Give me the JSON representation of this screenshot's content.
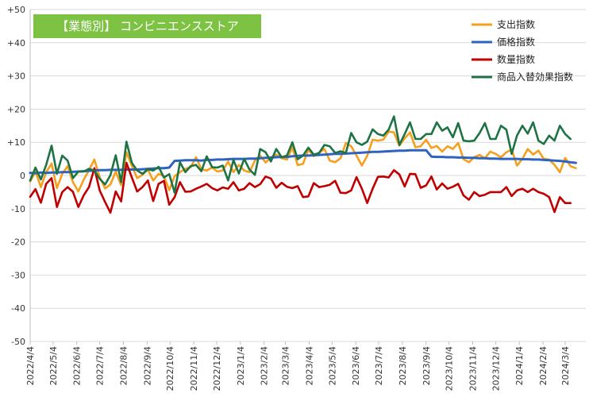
{
  "chart_data": {
    "type": "line",
    "title": "【業態別】 コンビニエンスストア",
    "title_bg": "#7dc242",
    "ylim": [
      -50,
      50
    ],
    "yticks": [
      -50,
      -40,
      -30,
      -20,
      -10,
      0,
      10,
      20,
      30,
      40,
      50
    ],
    "ytick_labels": [
      "-50",
      "-40",
      "-30",
      "-20",
      "-10",
      "0",
      "+10",
      "+20",
      "+30",
      "+40",
      "+50"
    ],
    "x_start": "2022-04-04",
    "x_end": "2024-03-31",
    "xtick_labels": [
      "2022/4/4",
      "2022/5/4",
      "2022/6/4",
      "2022/7/4",
      "2022/8/4",
      "2022/9/4",
      "2022/10/4",
      "2022/11/4",
      "2022/12/4",
      "2023/1/4",
      "2023/2/4",
      "2023/3/4",
      "2023/4/4",
      "2023/5/4",
      "2023/6/4",
      "2023/7/4",
      "2023/8/4",
      "2023/9/4",
      "2023/10/4",
      "2023/11/4",
      "2023/12/4",
      "2024/1/4",
      "2024/2/4",
      "2024/3/4"
    ],
    "grid": true,
    "legend_position": "top-right",
    "series": [
      {
        "name": "支出指数",
        "color": "#f5a01d",
        "values": [
          -1.8,
          1.2,
          -3.5,
          1.0,
          3.6,
          -3.8,
          0.5,
          2.8,
          -2.0,
          -4.8,
          -1.3,
          1.6,
          4.8,
          -0.5,
          -3.9,
          -2.7,
          1.2,
          -2.9,
          7.0,
          2.9,
          -0.8,
          0.2,
          1.8,
          -1.5,
          0.5,
          -0.2,
          -4.4,
          -0.2,
          1.0,
          2.0,
          2.5,
          5.5,
          1.9,
          1.5,
          2.4,
          1.2,
          1.5,
          4.2,
          1.0,
          3.2,
          1.5,
          1.0,
          4.5,
          6.0,
          3.9,
          5.5,
          6.3,
          5.2,
          4.8,
          8.5,
          3.1,
          3.5,
          7.8,
          5.8,
          6.8,
          8.0,
          4.5,
          4.0,
          5.2,
          9.8,
          8.8,
          6.0,
          3.0,
          5.9,
          10.8,
          10.5,
          10.8,
          13.2,
          13.0,
          9.0,
          11.2,
          13.0,
          8.5,
          8.8,
          10.8,
          8.3,
          8.9,
          7.2,
          8.8,
          8.0,
          9.8,
          4.9,
          4.0,
          5.5,
          6.2,
          5.2,
          7.2,
          6.5,
          5.5,
          7.0,
          7.8,
          3.0,
          5.0,
          8.0,
          6.3,
          7.5,
          5.0,
          4.8,
          3.2,
          1.0,
          5.3,
          2.8,
          2.2
        ]
      },
      {
        "name": "価格指数",
        "color": "#2f63c2",
        "values": [
          0.8,
          0.7,
          0.9,
          0.8,
          0.9,
          0.9,
          1.0,
          1.0,
          1.1,
          1.2,
          1.3,
          1.4,
          1.5,
          1.6,
          1.6,
          1.7,
          1.7,
          1.7,
          1.8,
          1.8,
          1.8,
          1.9,
          2.0,
          2.1,
          2.2,
          2.2,
          2.4,
          4.4,
          4.5,
          4.6,
          4.6,
          4.6,
          4.5,
          4.7,
          4.7,
          4.8,
          4.8,
          4.9,
          5.0,
          5.0,
          5.0,
          5.1,
          5.1,
          5.2,
          5.3,
          5.4,
          5.5,
          5.6,
          5.6,
          5.8,
          5.9,
          6.0,
          6.0,
          6.1,
          6.2,
          6.3,
          6.4,
          6.5,
          6.5,
          6.6,
          6.7,
          6.8,
          6.9,
          7.0,
          7.1,
          7.1,
          7.2,
          7.3,
          7.4,
          7.5,
          7.5,
          7.6,
          7.6,
          7.6,
          7.6,
          5.7,
          5.6,
          5.6,
          5.5,
          5.5,
          5.4,
          5.4,
          5.3,
          5.3,
          5.2,
          5.2,
          5.1,
          5.1,
          5.0,
          5.0,
          5.0,
          5.0,
          4.9,
          4.9,
          4.8,
          4.8,
          4.7,
          4.6,
          4.5,
          4.4,
          4.2,
          4.0,
          3.8
        ]
      },
      {
        "name": "数量指数",
        "color": "#c00000",
        "values": [
          -6.4,
          -4.1,
          -8.2,
          -2.5,
          -0.8,
          -9.5,
          -5.0,
          -3.5,
          -4.9,
          -9.5,
          -6.0,
          -3.5,
          2.2,
          -4.5,
          -8.0,
          -11.2,
          -4.8,
          -7.8,
          3.8,
          -0.6,
          -4.8,
          -3.5,
          -1.5,
          -7.7,
          -2.5,
          -1.6,
          -8.8,
          -6.5,
          -2.0,
          -4.9,
          -4.8,
          -4.0,
          -3.3,
          -2.5,
          -3.8,
          -4.5,
          -3.6,
          -4.0,
          -2.0,
          -4.5,
          -4.0,
          -2.3,
          -3.5,
          -2.6,
          -0.3,
          -0.9,
          -3.7,
          -2.2,
          -3.4,
          -3.8,
          -3.2,
          -6.5,
          -6.3,
          -2.3,
          -3.5,
          -3.2,
          -2.8,
          -1.6,
          -5.2,
          -5.3,
          -4.5,
          -0.5,
          -4.0,
          -8.3,
          -4.0,
          -0.4,
          -0.3,
          -0.6,
          1.6,
          0.3,
          -3.3,
          0.5,
          0.4,
          -3.7,
          -3.0,
          -0.3,
          -4.2,
          -2.4,
          -4.0,
          -3.4,
          -2.5,
          -6.0,
          -7.3,
          -5.0,
          -6.2,
          -5.8,
          -5.0,
          -5.0,
          -5.0,
          -3.5,
          -6.2,
          -4.5,
          -4.0,
          -5.0,
          -4.0,
          -5.0,
          -5.5,
          -6.5,
          -11.0,
          -6.5,
          -8.3,
          -8.3
        ]
      },
      {
        "name": "商品入替効果指数",
        "color": "#1e7345",
        "values": [
          -1.5,
          2.4,
          -1.2,
          3.2,
          9.0,
          0.5,
          6.0,
          4.5,
          -0.8,
          1.2,
          1.2,
          2.0,
          1.5,
          -1.0,
          -2.7,
          0.1,
          6.1,
          -2.0,
          10.2,
          3.8,
          1.5,
          0.5,
          1.9,
          1.5,
          2.6,
          -0.6,
          0.4,
          -5.2,
          4.0,
          1.0,
          2.8,
          3.2,
          1.3,
          5.8,
          2.5,
          2.4,
          3.0,
          -1.5,
          4.7,
          0.6,
          5.0,
          1.8,
          0.2,
          8.0,
          7.0,
          4.2,
          8.0,
          5.5,
          6.0,
          10.0,
          4.9,
          6.0,
          8.4,
          6.3,
          6.8,
          9.2,
          8.8,
          6.8,
          7.3,
          6.8,
          12.8,
          10.0,
          9.2,
          10.2,
          13.9,
          12.5,
          12.0,
          13.8,
          17.8,
          9.2,
          12.5,
          16.0,
          11.0,
          11.0,
          12.5,
          12.5,
          16.0,
          13.5,
          14.5,
          11.5,
          15.8,
          10.5,
          10.3,
          10.5,
          12.8,
          15.8,
          11.0,
          11.0,
          15.0,
          13.8,
          6.5,
          12.0,
          15.0,
          12.6,
          16.0,
          10.5,
          9.5,
          12.0,
          10.5,
          15.0,
          12.5,
          11.0
        ]
      }
    ]
  }
}
